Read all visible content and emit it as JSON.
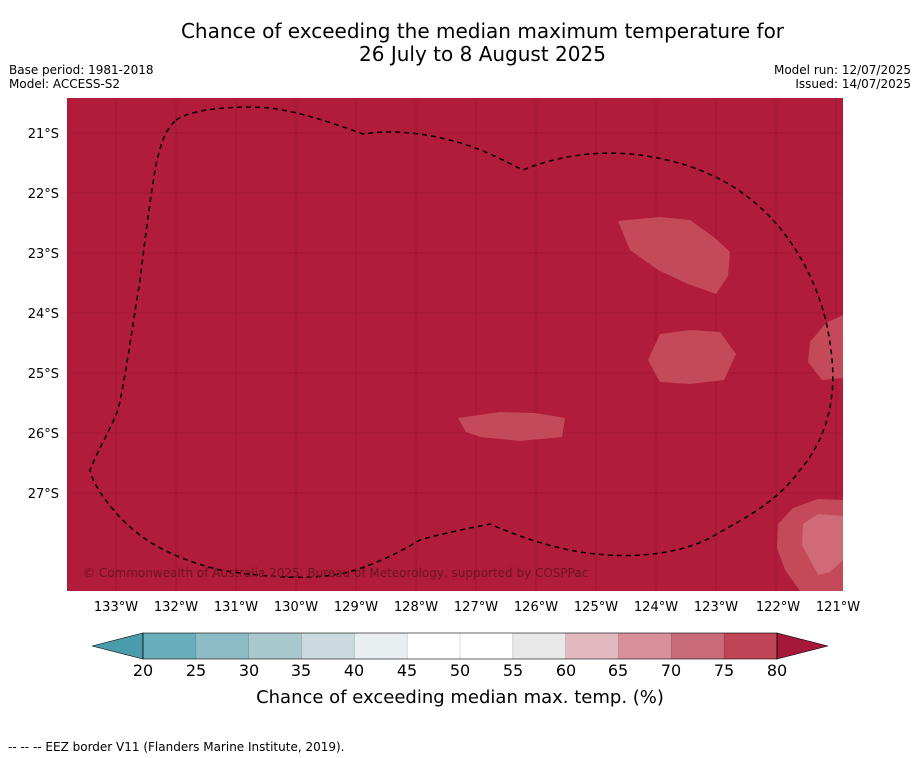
{
  "title": {
    "line1": "Chance of exceeding the median maximum temperature for",
    "line2": "26 July to 8 August 2025"
  },
  "meta": {
    "base_period": "Base period: 1981-2018",
    "model": "Model: ACCESS-S2",
    "model_run": "Model run: 12/07/2025",
    "issued": "Issued: 14/07/2025"
  },
  "map": {
    "background_color": "#b01c3a",
    "lighter_patch_color": "#c44a5a",
    "copyright": "© Commonwealth of Australia 2025, Bureau of Meteorology, supported by COSPPac",
    "lat_labels": [
      "21°S",
      "22°S",
      "23°S",
      "24°S",
      "25°S",
      "26°S",
      "27°S"
    ],
    "lon_labels": [
      "133°W",
      "132°W",
      "131°W",
      "130°W",
      "129°W",
      "128°W",
      "127°W",
      "126°W",
      "125°W",
      "124°W",
      "123°W",
      "122°W",
      "121°W"
    ]
  },
  "colorbar": {
    "title": "Chance of exceeding median max. temp. (%)",
    "tick_labels": [
      "20",
      "25",
      "30",
      "35",
      "40",
      "45",
      "50",
      "55",
      "60",
      "65",
      "70",
      "75",
      "80"
    ],
    "colors": [
      "#6aaebc",
      "#8ebcc6",
      "#a9c8cd",
      "#c9d9dc",
      "#e9eef0",
      "#ffffff",
      "#ffffff",
      "#e8e8e8",
      "#e1b9bf",
      "#d88f99",
      "#c96b77",
      "#bf4455"
    ],
    "low_extend_color": "#4a9cad",
    "high_extend_color": "#a5183a"
  },
  "footer": {
    "legend_text": "--  --  -- EEZ border V11 (Flanders Marine Institute, 2019)."
  }
}
